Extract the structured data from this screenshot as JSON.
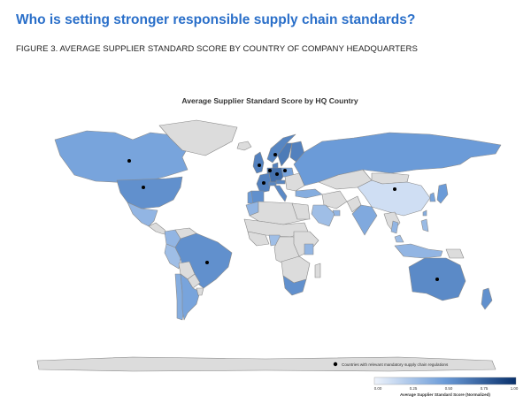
{
  "heading": "Who is setting stronger responsible supply chain standards?",
  "figure_caption": "FIGURE 3. AVERAGE SUPPLIER STANDARD SCORE BY COUNTRY OF COMPANY HEADQUARTERS",
  "map": {
    "title": "Average Supplier Standard Score by HQ Country",
    "regulation_legend_label": "Countries with relevant mandatory supply chain regulations",
    "colorbar_title": "Average Supplier Standard Score (Normalized)",
    "colorbar_ticks": [
      "0.00",
      "0.25",
      "0.50",
      "0.75",
      "1.00"
    ],
    "colors": {
      "no_data": "#dcdcdc",
      "border": "#8a8a8a",
      "scale_low": "#eef3fb",
      "scale_high": "#08306b",
      "marker": "#000000"
    },
    "regions": [
      {
        "name": "Canada",
        "score": 0.45,
        "regulation": true
      },
      {
        "name": "Greenland",
        "score": null,
        "regulation": false
      },
      {
        "name": "United States",
        "score": 0.55,
        "regulation": true
      },
      {
        "name": "Mexico",
        "score": 0.35,
        "regulation": false
      },
      {
        "name": "Central America",
        "score": null,
        "regulation": false
      },
      {
        "name": "Colombia",
        "score": 0.35,
        "regulation": false
      },
      {
        "name": "Venezuela",
        "score": null,
        "regulation": false
      },
      {
        "name": "Peru",
        "score": 0.3,
        "regulation": false
      },
      {
        "name": "Brazil",
        "score": 0.55,
        "regulation": true
      },
      {
        "name": "Bolivia",
        "score": null,
        "regulation": false
      },
      {
        "name": "Paraguay",
        "score": null,
        "regulation": false
      },
      {
        "name": "Chile",
        "score": 0.4,
        "regulation": false
      },
      {
        "name": "Argentina",
        "score": 0.45,
        "regulation": false
      },
      {
        "name": "Uruguay",
        "score": null,
        "regulation": false
      },
      {
        "name": "United Kingdom",
        "score": 0.62,
        "regulation": true
      },
      {
        "name": "Iceland",
        "score": null,
        "regulation": false
      },
      {
        "name": "Norway",
        "score": 0.6,
        "regulation": true
      },
      {
        "name": "Sweden",
        "score": 0.65,
        "regulation": false
      },
      {
        "name": "Finland",
        "score": 0.62,
        "regulation": false
      },
      {
        "name": "Germany",
        "score": 0.7,
        "regulation": true
      },
      {
        "name": "France",
        "score": 0.62,
        "regulation": true
      },
      {
        "name": "Spain",
        "score": 0.55,
        "regulation": false
      },
      {
        "name": "Portugal",
        "score": 0.5,
        "regulation": false
      },
      {
        "name": "Italy",
        "score": 0.58,
        "regulation": false
      },
      {
        "name": "Netherlands",
        "score": 0.72,
        "regulation": true
      },
      {
        "name": "Switzerland",
        "score": 0.6,
        "regulation": true
      },
      {
        "name": "Austria",
        "score": 0.6,
        "regulation": false
      },
      {
        "name": "Denmark",
        "score": 0.62,
        "regulation": false
      },
      {
        "name": "Poland",
        "score": 0.45,
        "regulation": false
      },
      {
        "name": "Eastern Europe",
        "score": null,
        "regulation": false
      },
      {
        "name": "Russia",
        "score": 0.5,
        "regulation": false
      },
      {
        "name": "Turkey",
        "score": 0.4,
        "regulation": false
      },
      {
        "name": "Kazakhstan",
        "score": null,
        "regulation": false
      },
      {
        "name": "Mongolia",
        "score": null,
        "regulation": false
      },
      {
        "name": "China",
        "score": 0.12,
        "regulation": true
      },
      {
        "name": "India",
        "score": 0.42,
        "regulation": false
      },
      {
        "name": "Pakistan",
        "score": null,
        "regulation": false
      },
      {
        "name": "Iran",
        "score": null,
        "regulation": false
      },
      {
        "name": "Saudi Arabia",
        "score": 0.3,
        "regulation": false
      },
      {
        "name": "United Arab Emirates",
        "score": 0.35,
        "regulation": false
      },
      {
        "name": "Southeast Asia",
        "score": null,
        "regulation": false
      },
      {
        "name": "Thailand",
        "score": 0.35,
        "regulation": false
      },
      {
        "name": "Malaysia",
        "score": 0.3,
        "regulation": false
      },
      {
        "name": "Indonesia",
        "score": 0.35,
        "regulation": false
      },
      {
        "name": "Philippines",
        "score": 0.32,
        "regulation": false
      },
      {
        "name": "South Korea",
        "score": 0.45,
        "regulation": false
      },
      {
        "name": "Japan",
        "score": 0.5,
        "regulation": false
      },
      {
        "name": "Taiwan",
        "score": 0.4,
        "regulation": false
      },
      {
        "name": "Australia",
        "score": 0.58,
        "regulation": true
      },
      {
        "name": "New Zealand",
        "score": 0.55,
        "regulation": false
      },
      {
        "name": "Papua New Guinea",
        "score": null,
        "regulation": false
      },
      {
        "name": "North Africa",
        "score": null,
        "regulation": false
      },
      {
        "name": "Morocco",
        "score": 0.35,
        "regulation": false
      },
      {
        "name": "Egypt",
        "score": null,
        "regulation": false
      },
      {
        "name": "Sahel",
        "score": null,
        "regulation": false
      },
      {
        "name": "West Africa",
        "score": null,
        "regulation": false
      },
      {
        "name": "Nigeria",
        "score": 0.3,
        "regulation": false
      },
      {
        "name": "Central Africa",
        "score": null,
        "regulation": false
      },
      {
        "name": "East Africa",
        "score": null,
        "regulation": false
      },
      {
        "name": "Kenya",
        "score": 0.35,
        "regulation": false
      },
      {
        "name": "Southern Africa",
        "score": null,
        "regulation": false
      },
      {
        "name": "South Africa",
        "score": 0.55,
        "regulation": false
      },
      {
        "name": "Madagascar",
        "score": null,
        "regulation": false
      },
      {
        "name": "Antarctica",
        "score": null,
        "regulation": false
      }
    ]
  }
}
